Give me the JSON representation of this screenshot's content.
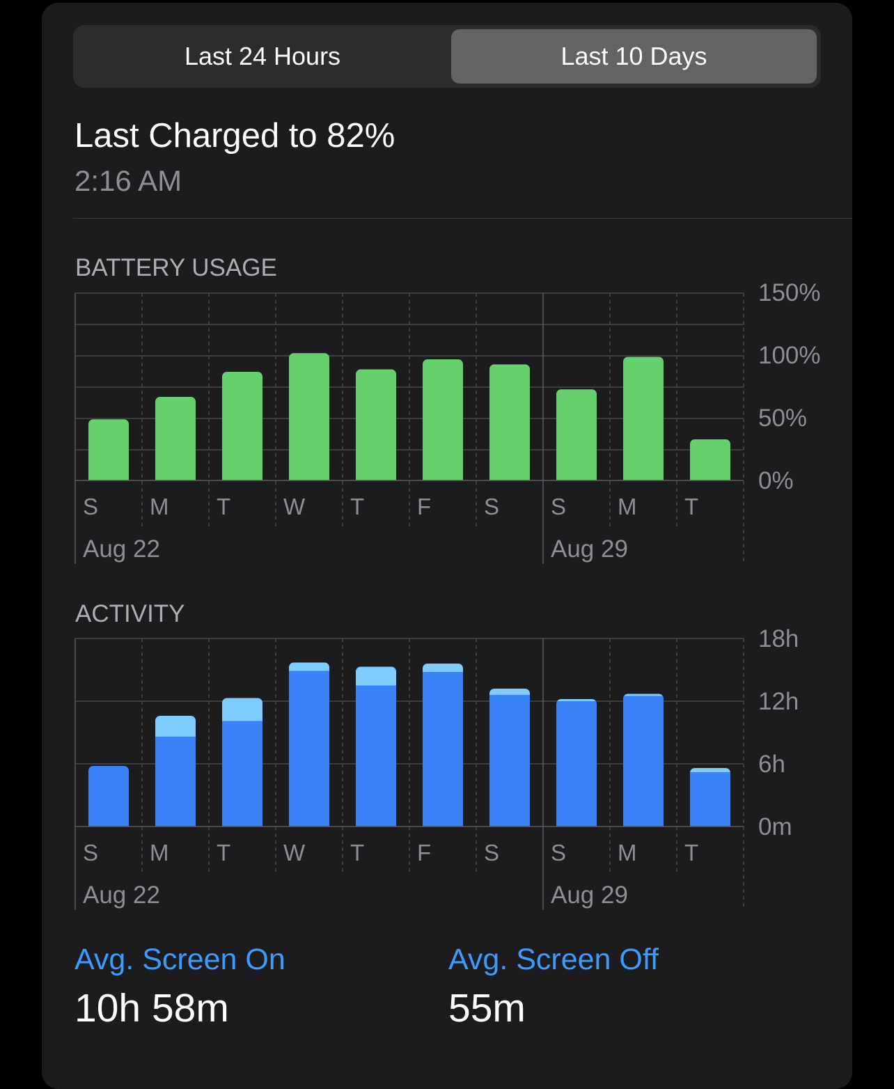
{
  "segmented_control": {
    "options": [
      "Last 24 Hours",
      "Last 10 Days"
    ],
    "selected": "Last 10 Days"
  },
  "last_charged": {
    "title": "Last Charged to 82%",
    "time": "2:16 AM"
  },
  "battery_usage": {
    "label": "BATTERY USAGE"
  },
  "activity": {
    "label": "ACTIVITY"
  },
  "chart_data": [
    {
      "type": "bar",
      "title": "BATTERY USAGE",
      "categories": [
        "S",
        "M",
        "T",
        "W",
        "T",
        "F",
        "S",
        "S",
        "M",
        "T"
      ],
      "date_labels": [
        "Aug 22",
        "Aug 29"
      ],
      "y_ticks": [
        "150%",
        "100%",
        "50%",
        "0%"
      ],
      "ylim": [
        0,
        150
      ],
      "series": [
        {
          "values": [
            49,
            67,
            87,
            102,
            89,
            97,
            93,
            73,
            99,
            33
          ],
          "color": "#65d16e"
        }
      ],
      "grid": true
    },
    {
      "type": "bar",
      "title": "ACTIVITY",
      "stacked": true,
      "categories": [
        "S",
        "M",
        "T",
        "W",
        "T",
        "F",
        "S",
        "S",
        "M",
        "T"
      ],
      "date_labels": [
        "Aug 22",
        "Aug 29"
      ],
      "y_ticks": [
        "18h",
        "12h",
        "6h",
        "0m"
      ],
      "ylim": [
        0,
        18
      ],
      "series": [
        {
          "values": [
            5.8,
            8.6,
            10.1,
            14.9,
            13.5,
            14.8,
            12.6,
            12.0,
            12.5,
            5.2
          ],
          "color": "#3a82f7"
        },
        {
          "values": [
            0,
            2.0,
            2.2,
            0.8,
            1.8,
            0.8,
            0.6,
            0.2,
            0.2,
            0.4
          ],
          "color": "#7ecbff"
        }
      ],
      "grid": true
    }
  ],
  "stats": {
    "screen_on_label": "Avg. Screen On",
    "screen_on_value": "10h 58m",
    "screen_off_label": "Avg. Screen Off",
    "screen_off_value": "55m"
  }
}
